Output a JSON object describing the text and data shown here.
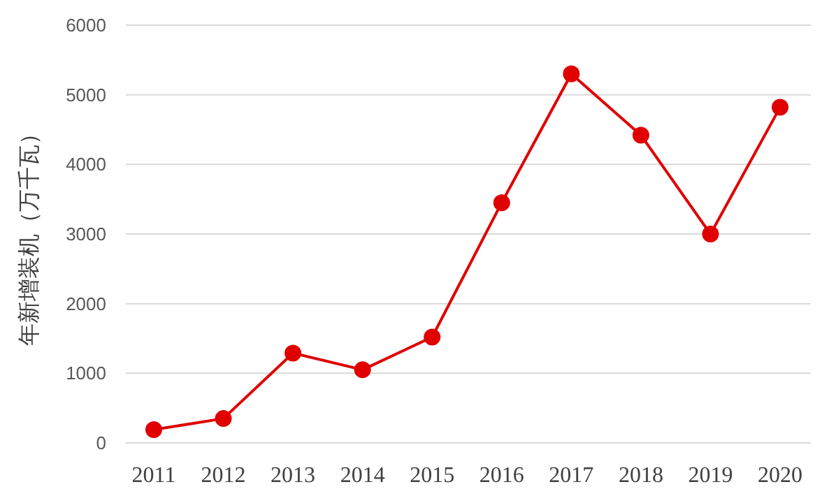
{
  "chart_data": {
    "type": "line",
    "ylabel": "年新增装机（万千瓦）",
    "categories": [
      "2011",
      "2012",
      "2013",
      "2014",
      "2015",
      "2016",
      "2017",
      "2018",
      "2019",
      "2020"
    ],
    "series": [
      {
        "color": "#e00000",
        "values": [
          190,
          350,
          1290,
          1050,
          1520,
          3450,
          5300,
          4420,
          3000,
          4820
        ]
      }
    ],
    "ylim": [
      0,
      6000
    ],
    "yticks": [
      0,
      1000,
      2000,
      3000,
      4000,
      5000,
      6000
    ],
    "grid": "y",
    "marker": "circle",
    "line_style": "solid"
  }
}
